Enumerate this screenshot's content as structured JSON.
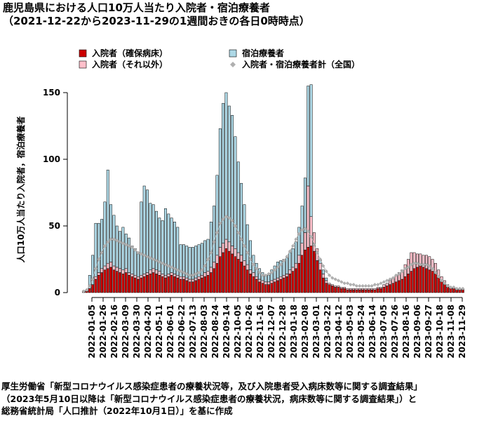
{
  "title": "鹿児島県における人口10万人当たり入院者・宿泊療養者",
  "subtitle": "（2021-12-22から2023-11-29の1週間おきの各日0時時点）",
  "source_lines": [
    "厚生労働省「新型コロナウイルス感染症患者の療養状況等，及び入院患者受入病床数等に関する調査結果」",
    "（2023年5月10日以降は「新型コロナウイルス感染症患者の療養状況，病床数等に関する調査結果」）と",
    "総務省統計局「人口推計（2022年10月1日）」を基に作成"
  ],
  "colors": {
    "hosp_confirmed": "#cc0000",
    "hosp_other": "#ffc0cb",
    "lodging": "#add8e6",
    "total_marker": "#b0b0b0",
    "bar_border": "#000000"
  },
  "chart_data": {
    "type": "bar",
    "stacked": true,
    "ylabel": "人口10万人当たり入院者，宿泊療養者",
    "ylim": [
      0,
      160
    ],
    "yticks": [
      0,
      50,
      100,
      150
    ],
    "legend_position": "top",
    "legend": [
      {
        "key": "hosp_confirmed",
        "label": "入院者（確保病床）",
        "marker": "square"
      },
      {
        "key": "lodging",
        "label": "宿泊療養者",
        "marker": "square"
      },
      {
        "key": "hosp_other",
        "label": "入院者（それ以外）",
        "marker": "square"
      },
      {
        "key": "total_marker",
        "label": "入院者・宿泊療養者計（全国）",
        "marker": "diamond"
      }
    ],
    "xticks": [
      "2022-01-05",
      "2022-01-26",
      "2022-02-16",
      "2022-03-09",
      "2022-03-30",
      "2022-04-20",
      "2022-05-11",
      "2022-06-01",
      "2022-06-22",
      "2022-07-13",
      "2022-08-03",
      "2022-08-24",
      "2022-09-14",
      "2022-10-05",
      "2022-10-26",
      "2022-11-16",
      "2022-12-07",
      "2022-12-28",
      "2023-01-18",
      "2023-02-08",
      "2023-03-01",
      "2023-03-22",
      "2023-04-12",
      "2023-05-03",
      "2023-05-24",
      "2023-06-14",
      "2023-07-05",
      "2023-07-26",
      "2023-08-16",
      "2023-09-06",
      "2023-09-27",
      "2023-10-18",
      "2023-11-08",
      "2023-11-29"
    ],
    "series": [
      {
        "name": "入院者（確保病床）",
        "key": "hosp_confirmed",
        "values": [
          0.5,
          1,
          3,
          6,
          10,
          13,
          15,
          17,
          18,
          19,
          17,
          16,
          15,
          14,
          15,
          13,
          12,
          11,
          10,
          11,
          12,
          13,
          14,
          15,
          14,
          13,
          12,
          11,
          12,
          13,
          12,
          11,
          10,
          10,
          9,
          8,
          8,
          9,
          10,
          11,
          12,
          13,
          15,
          18,
          22,
          27,
          30,
          33,
          31,
          29,
          27,
          25,
          23,
          20,
          17,
          14,
          12,
          10,
          8,
          7,
          6,
          6,
          7,
          8,
          9,
          10,
          11,
          12,
          14,
          16,
          18,
          22,
          28,
          32,
          34,
          35,
          31,
          24,
          17,
          11,
          7,
          6,
          5,
          4,
          4,
          3,
          3,
          2,
          2,
          2,
          2,
          2,
          2,
          2,
          2,
          2,
          2,
          3,
          3,
          4,
          5,
          6,
          7,
          8,
          9,
          10,
          12,
          14,
          16,
          18,
          19,
          20,
          19,
          18,
          17,
          16,
          14,
          11,
          8,
          6,
          4,
          3,
          3,
          2,
          2,
          2
        ]
      },
      {
        "name": "入院者（それ以外）",
        "key": "hosp_other",
        "values": [
          0,
          0,
          0,
          0,
          2,
          2,
          3,
          3,
          4,
          4,
          3,
          3,
          3,
          3,
          3,
          2,
          2,
          2,
          2,
          2,
          2,
          2,
          3,
          3,
          3,
          3,
          2,
          2,
          2,
          2,
          2,
          2,
          2,
          2,
          2,
          2,
          2,
          2,
          2,
          2,
          3,
          3,
          4,
          5,
          6,
          7,
          7,
          7,
          7,
          6,
          6,
          5,
          5,
          4,
          4,
          3,
          3,
          2,
          2,
          2,
          2,
          2,
          2,
          2,
          2,
          2,
          2,
          2,
          3,
          3,
          4,
          6,
          9,
          13,
          46,
          22,
          14,
          9,
          5,
          3,
          2,
          1,
          1,
          1,
          1,
          1,
          1,
          1,
          1,
          1,
          1,
          1,
          1,
          1,
          1,
          1,
          1,
          1,
          1,
          2,
          2,
          3,
          4,
          5,
          6,
          7,
          9,
          11,
          14,
          12,
          10,
          9,
          9,
          10,
          10,
          9,
          8,
          6,
          4,
          3,
          2,
          1,
          1,
          1,
          1,
          1
        ]
      },
      {
        "name": "宿泊療養者",
        "key": "lodging",
        "values": [
          1,
          1,
          10,
          22,
          40,
          37,
          37,
          48,
          70,
          43,
          38,
          31,
          28,
          32,
          26,
          26,
          21,
          20,
          17,
          55,
          66,
          62,
          50,
          48,
          44,
          40,
          40,
          50,
          45,
          41,
          39,
          36,
          24,
          24,
          24,
          24,
          24,
          24,
          24,
          24,
          24,
          24,
          34,
          42,
          60,
          89,
          105,
          110,
          102,
          98,
          84,
          68,
          54,
          42,
          30,
          22,
          13,
          10,
          8,
          6,
          5,
          5,
          8,
          10,
          12,
          12,
          12,
          12,
          13,
          14,
          16,
          21,
          28,
          41,
          75,
          99,
          0,
          0,
          3,
          3,
          2,
          0,
          0,
          0,
          0,
          0,
          0,
          0,
          0,
          0,
          0,
          0,
          0,
          0,
          0,
          0,
          0,
          0,
          0,
          0,
          0,
          0,
          0,
          0,
          0,
          0,
          0,
          0,
          0,
          0,
          0,
          0,
          0,
          0,
          0,
          0,
          0,
          0,
          0,
          0,
          0,
          0,
          0,
          0,
          0,
          0
        ]
      },
      {
        "name": "入院者・宿泊療養者計（全国）",
        "key": "total_marker",
        "type": "scatter",
        "values": [
          1,
          2,
          5,
          10,
          18,
          25,
          30,
          35,
          38,
          40,
          40,
          39,
          38,
          37,
          36,
          35,
          34,
          32,
          30,
          29,
          28,
          27,
          26,
          25,
          24,
          23,
          22,
          21,
          20,
          19,
          18,
          17,
          16,
          15,
          14,
          13,
          13,
          14,
          15,
          17,
          20,
          25,
          30,
          38,
          45,
          52,
          55,
          57,
          56,
          54,
          50,
          45,
          40,
          35,
          30,
          25,
          21,
          18,
          15,
          13,
          13,
          14,
          15,
          17,
          19,
          21,
          24,
          27,
          31,
          35,
          40,
          44,
          47,
          48,
          46,
          42,
          36,
          30,
          25,
          20,
          16,
          13,
          11,
          10,
          9,
          8,
          7,
          7,
          6,
          6,
          5,
          5,
          5,
          5,
          5,
          5,
          6,
          6,
          7,
          8,
          9,
          10,
          11,
          13,
          14,
          16,
          18,
          19,
          21,
          22,
          22,
          21,
          21,
          21,
          20,
          18,
          15,
          12,
          9,
          7,
          5,
          4,
          4,
          3,
          3,
          3
        ]
      }
    ]
  }
}
